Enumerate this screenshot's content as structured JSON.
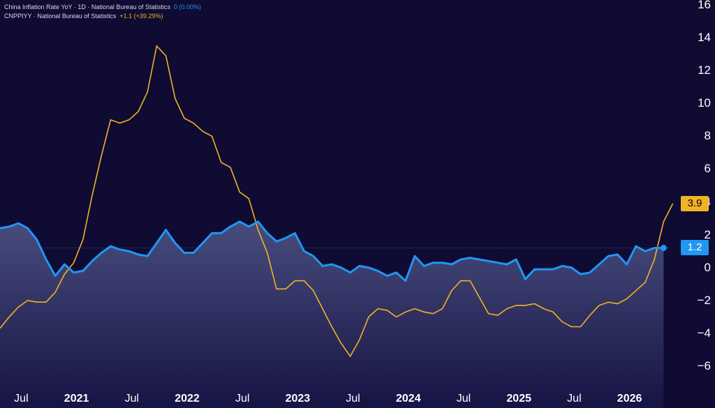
{
  "legend": {
    "cpi_label": "China Inflation Rate YoY · 1D · National Bureau of Statistics",
    "cpi_change": "0 (0.00%)",
    "ppi_label": "CNPPIYY · National Bureau of Statistics",
    "ppi_change": "+1.1 (+39.29%)"
  },
  "badges": {
    "ppi_last": "3.9",
    "cpi_last": "1.2"
  },
  "colors": {
    "background": "#0f0b33",
    "cpi": "#2196f3",
    "ppi": "#f0b323",
    "badge_text_dark": "#000000"
  },
  "chart_data": {
    "type": "line",
    "ylim": [
      -6,
      16
    ],
    "y_ticks": [
      "16",
      "14",
      "12",
      "10",
      "8",
      "6",
      "4",
      "2",
      "0",
      "−2",
      "−4",
      "−6"
    ],
    "x_ticks": [
      "Jul",
      "2021",
      "Jul",
      "2022",
      "Jul",
      "2023",
      "Jul",
      "2024",
      "Jul",
      "2025",
      "Jul",
      "2026"
    ],
    "x_start": "2020-05",
    "series": [
      {
        "name": "China Inflation Rate YoY",
        "area": true,
        "values": [
          2.4,
          2.5,
          2.7,
          2.4,
          1.7,
          0.5,
          -0.5,
          0.2,
          -0.3,
          -0.2,
          0.4,
          0.9,
          1.3,
          1.1,
          1.0,
          0.8,
          0.7,
          1.5,
          2.3,
          1.5,
          0.9,
          0.9,
          1.5,
          2.1,
          2.1,
          2.5,
          2.8,
          2.5,
          2.8,
          2.1,
          1.6,
          1.8,
          2.1,
          1.0,
          0.7,
          0.1,
          0.2,
          0.0,
          -0.3,
          0.1,
          0.0,
          -0.2,
          -0.5,
          -0.3,
          -0.8,
          0.7,
          0.1,
          0.3,
          0.3,
          0.2,
          0.5,
          0.6,
          0.5,
          0.4,
          0.3,
          0.2,
          0.5,
          -0.7,
          -0.1,
          -0.1,
          -0.1,
          0.1,
          0.0,
          -0.4,
          -0.3,
          0.2,
          0.7,
          0.8,
          0.2,
          1.3,
          1.0,
          1.2,
          1.2
        ]
      },
      {
        "name": "CNPPIYY",
        "area": false,
        "values": [
          -3.7,
          -3.0,
          -2.4,
          -2.0,
          -2.1,
          -2.1,
          -1.5,
          -0.4,
          0.3,
          1.7,
          4.4,
          6.8,
          9.0,
          8.8,
          9.0,
          9.5,
          10.7,
          13.5,
          12.9,
          10.3,
          9.1,
          8.8,
          8.3,
          8.0,
          6.4,
          6.1,
          4.6,
          4.2,
          2.3,
          0.9,
          -1.3,
          -1.3,
          -0.8,
          -0.8,
          -1.4,
          -2.5,
          -3.6,
          -4.6,
          -5.4,
          -4.4,
          -3.0,
          -2.5,
          -2.6,
          -3.0,
          -2.7,
          -2.5,
          -2.7,
          -2.8,
          -2.5,
          -1.4,
          -0.8,
          -0.8,
          -1.8,
          -2.8,
          -2.9,
          -2.5,
          -2.3,
          -2.3,
          -2.2,
          -2.5,
          -2.7,
          -3.3,
          -3.6,
          -3.6,
          -2.9,
          -2.3,
          -2.1,
          -2.2,
          -1.9,
          -1.4,
          -0.9,
          0.5,
          2.8,
          3.9
        ]
      }
    ]
  }
}
